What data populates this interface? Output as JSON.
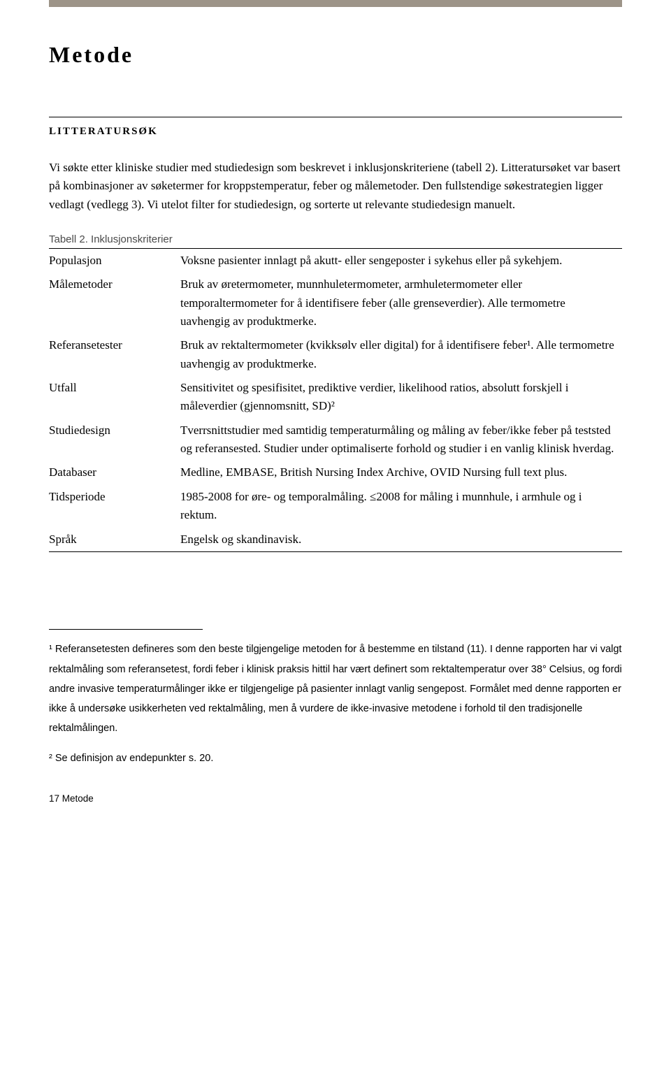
{
  "colors": {
    "top_bar": "#9d9488",
    "background": "#ffffff",
    "text": "#000000",
    "caption_text": "#4a4a4a"
  },
  "title": "Metode",
  "section_heading": "LITTERATURSØK",
  "intro_paragraph": "Vi søkte etter kliniske studier med studiedesign som beskrevet i inklusjonskriteriene (tabell 2). Litteratursøket var basert på kombinasjoner av søketermer for kroppstemperatur, feber og målemetoder. Den fullstendige søkestrategien ligger vedlagt (vedlegg 3). Vi utelot filter for studiedesign, og sorterte ut relevante studiedesign manuelt.",
  "table_caption": "Tabell 2. Inklusjonskriterier",
  "rows": [
    {
      "label": "Populasjon",
      "value": "Voksne pasienter innlagt på akutt- eller sengeposter i sykehus eller på sykehjem."
    },
    {
      "label": "Målemetoder",
      "value": "Bruk av øretermometer, munnhuletermometer, armhuletermometer eller temporaltermometer for å identifisere feber (alle grenseverdier). Alle termometre uavhengig av produktmerke."
    },
    {
      "label": "Referansetester",
      "value": "Bruk av rektaltermometer (kvikksølv eller digital) for å identifisere feber¹. Alle termometre uavhengig av produktmerke."
    },
    {
      "label": "Utfall",
      "value": "Sensitivitet og spesifisitet, prediktive verdier, likelihood ratios, absolutt forskjell i måleverdier (gjennomsnitt, SD)²"
    },
    {
      "label": "Studiedesign",
      "value": "Tverrsnittstudier med samtidig temperaturmåling og måling av feber/ikke feber på teststed og referansested. Studier under optimaliserte forhold og studier i en vanlig klinisk hverdag."
    },
    {
      "label": "Databaser",
      "value": "Medline, EMBASE, British Nursing Index Archive, OVID Nursing full text plus."
    },
    {
      "label": "Tidsperiode",
      "value": "1985-2008 for øre- og temporalmåling. ≤2008 for måling i munnhule, i armhule og i rektum."
    },
    {
      "label": "Språk",
      "value": "Engelsk og skandinavisk."
    }
  ],
  "footnotes": [
    "¹ Referansetesten defineres som den beste tilgjengelige metoden for å bestemme en tilstand (11). I denne rapporten har vi valgt rektalmåling som referansetest, fordi feber i klinisk praksis hittil har vært definert som rektaltemperatur over 38° Celsius, og fordi andre invasive temperaturmålinger ikke er tilgjengelige på pasienter innlagt vanlig sengepost. Formålet med denne rapporten er ikke å undersøke usikkerheten ved rektalmåling, men å vurdere de ikke-invasive metodene i forhold til den tradisjonelle rektalmålingen.",
    "² Se definisjon av endepunkter s. 20."
  ],
  "page_footer": "17 Metode"
}
